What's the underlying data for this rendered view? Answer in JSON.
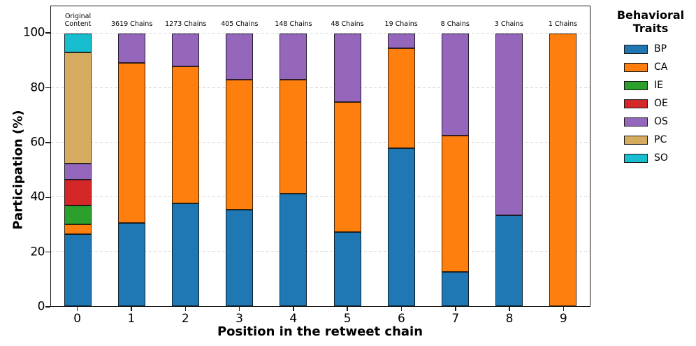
{
  "chart_data": {
    "type": "bar",
    "stacked": true,
    "title": "",
    "xlabel": "Position in the retweet chain",
    "ylabel": "Participation (%)",
    "categories": [
      "0",
      "1",
      "2",
      "3",
      "4",
      "5",
      "6",
      "7",
      "8",
      "9"
    ],
    "bar_top_labels": [
      "Original\nContent",
      "3619 Chains",
      "1273 Chains",
      "405 Chains",
      "148 Chains",
      "48 Chains",
      "19 Chains",
      "8 Chains",
      "3 Chains",
      "1 Chains"
    ],
    "series": [
      {
        "name": "BP",
        "color": "#1f77b4",
        "values": [
          26.3,
          30.4,
          37.7,
          35.4,
          41.3,
          27.1,
          57.9,
          12.5,
          33.3,
          0
        ]
      },
      {
        "name": "CA",
        "color": "#ff7f0e",
        "values": [
          3.7,
          58.9,
          50.3,
          47.8,
          41.7,
          47.9,
          36.8,
          50.0,
          0,
          100
        ]
      },
      {
        "name": "IE",
        "color": "#2ca02c",
        "values": [
          7.0,
          0,
          0,
          0,
          0,
          0,
          0,
          0,
          0,
          0
        ]
      },
      {
        "name": "OE",
        "color": "#d62728",
        "values": [
          9.5,
          0,
          0,
          0,
          0,
          0,
          0,
          0,
          0,
          0
        ]
      },
      {
        "name": "OS",
        "color": "#9467bd",
        "values": [
          5.8,
          10.7,
          12.0,
          16.8,
          17.0,
          25.0,
          5.3,
          37.5,
          66.7,
          0
        ]
      },
      {
        "name": "PC",
        "color": "#d4ab5f",
        "values": [
          40.7,
          0,
          0,
          0,
          0,
          0,
          0,
          0,
          0,
          0
        ]
      },
      {
        "name": "SO",
        "color": "#18bdd0",
        "values": [
          7.0,
          0,
          0,
          0,
          0,
          0,
          0,
          0,
          0,
          0
        ]
      }
    ],
    "ylim": [
      0,
      110
    ],
    "y_ticks": [
      "0",
      "20",
      "40",
      "60",
      "80",
      "100"
    ],
    "y_tick_values": [
      0,
      20,
      40,
      60,
      80,
      100
    ],
    "grid": {
      "values": [
        20,
        40,
        60,
        80,
        100
      ],
      "style": "dashed",
      "color": "#d8d8d8",
      "axis": "y"
    },
    "legend_title": "Behavioral Traits",
    "legend_position": "outside-upper-right",
    "bar_edge_color": "#1a1a1a",
    "spine_color": "#1a1a1a",
    "background": "#ffffff"
  }
}
